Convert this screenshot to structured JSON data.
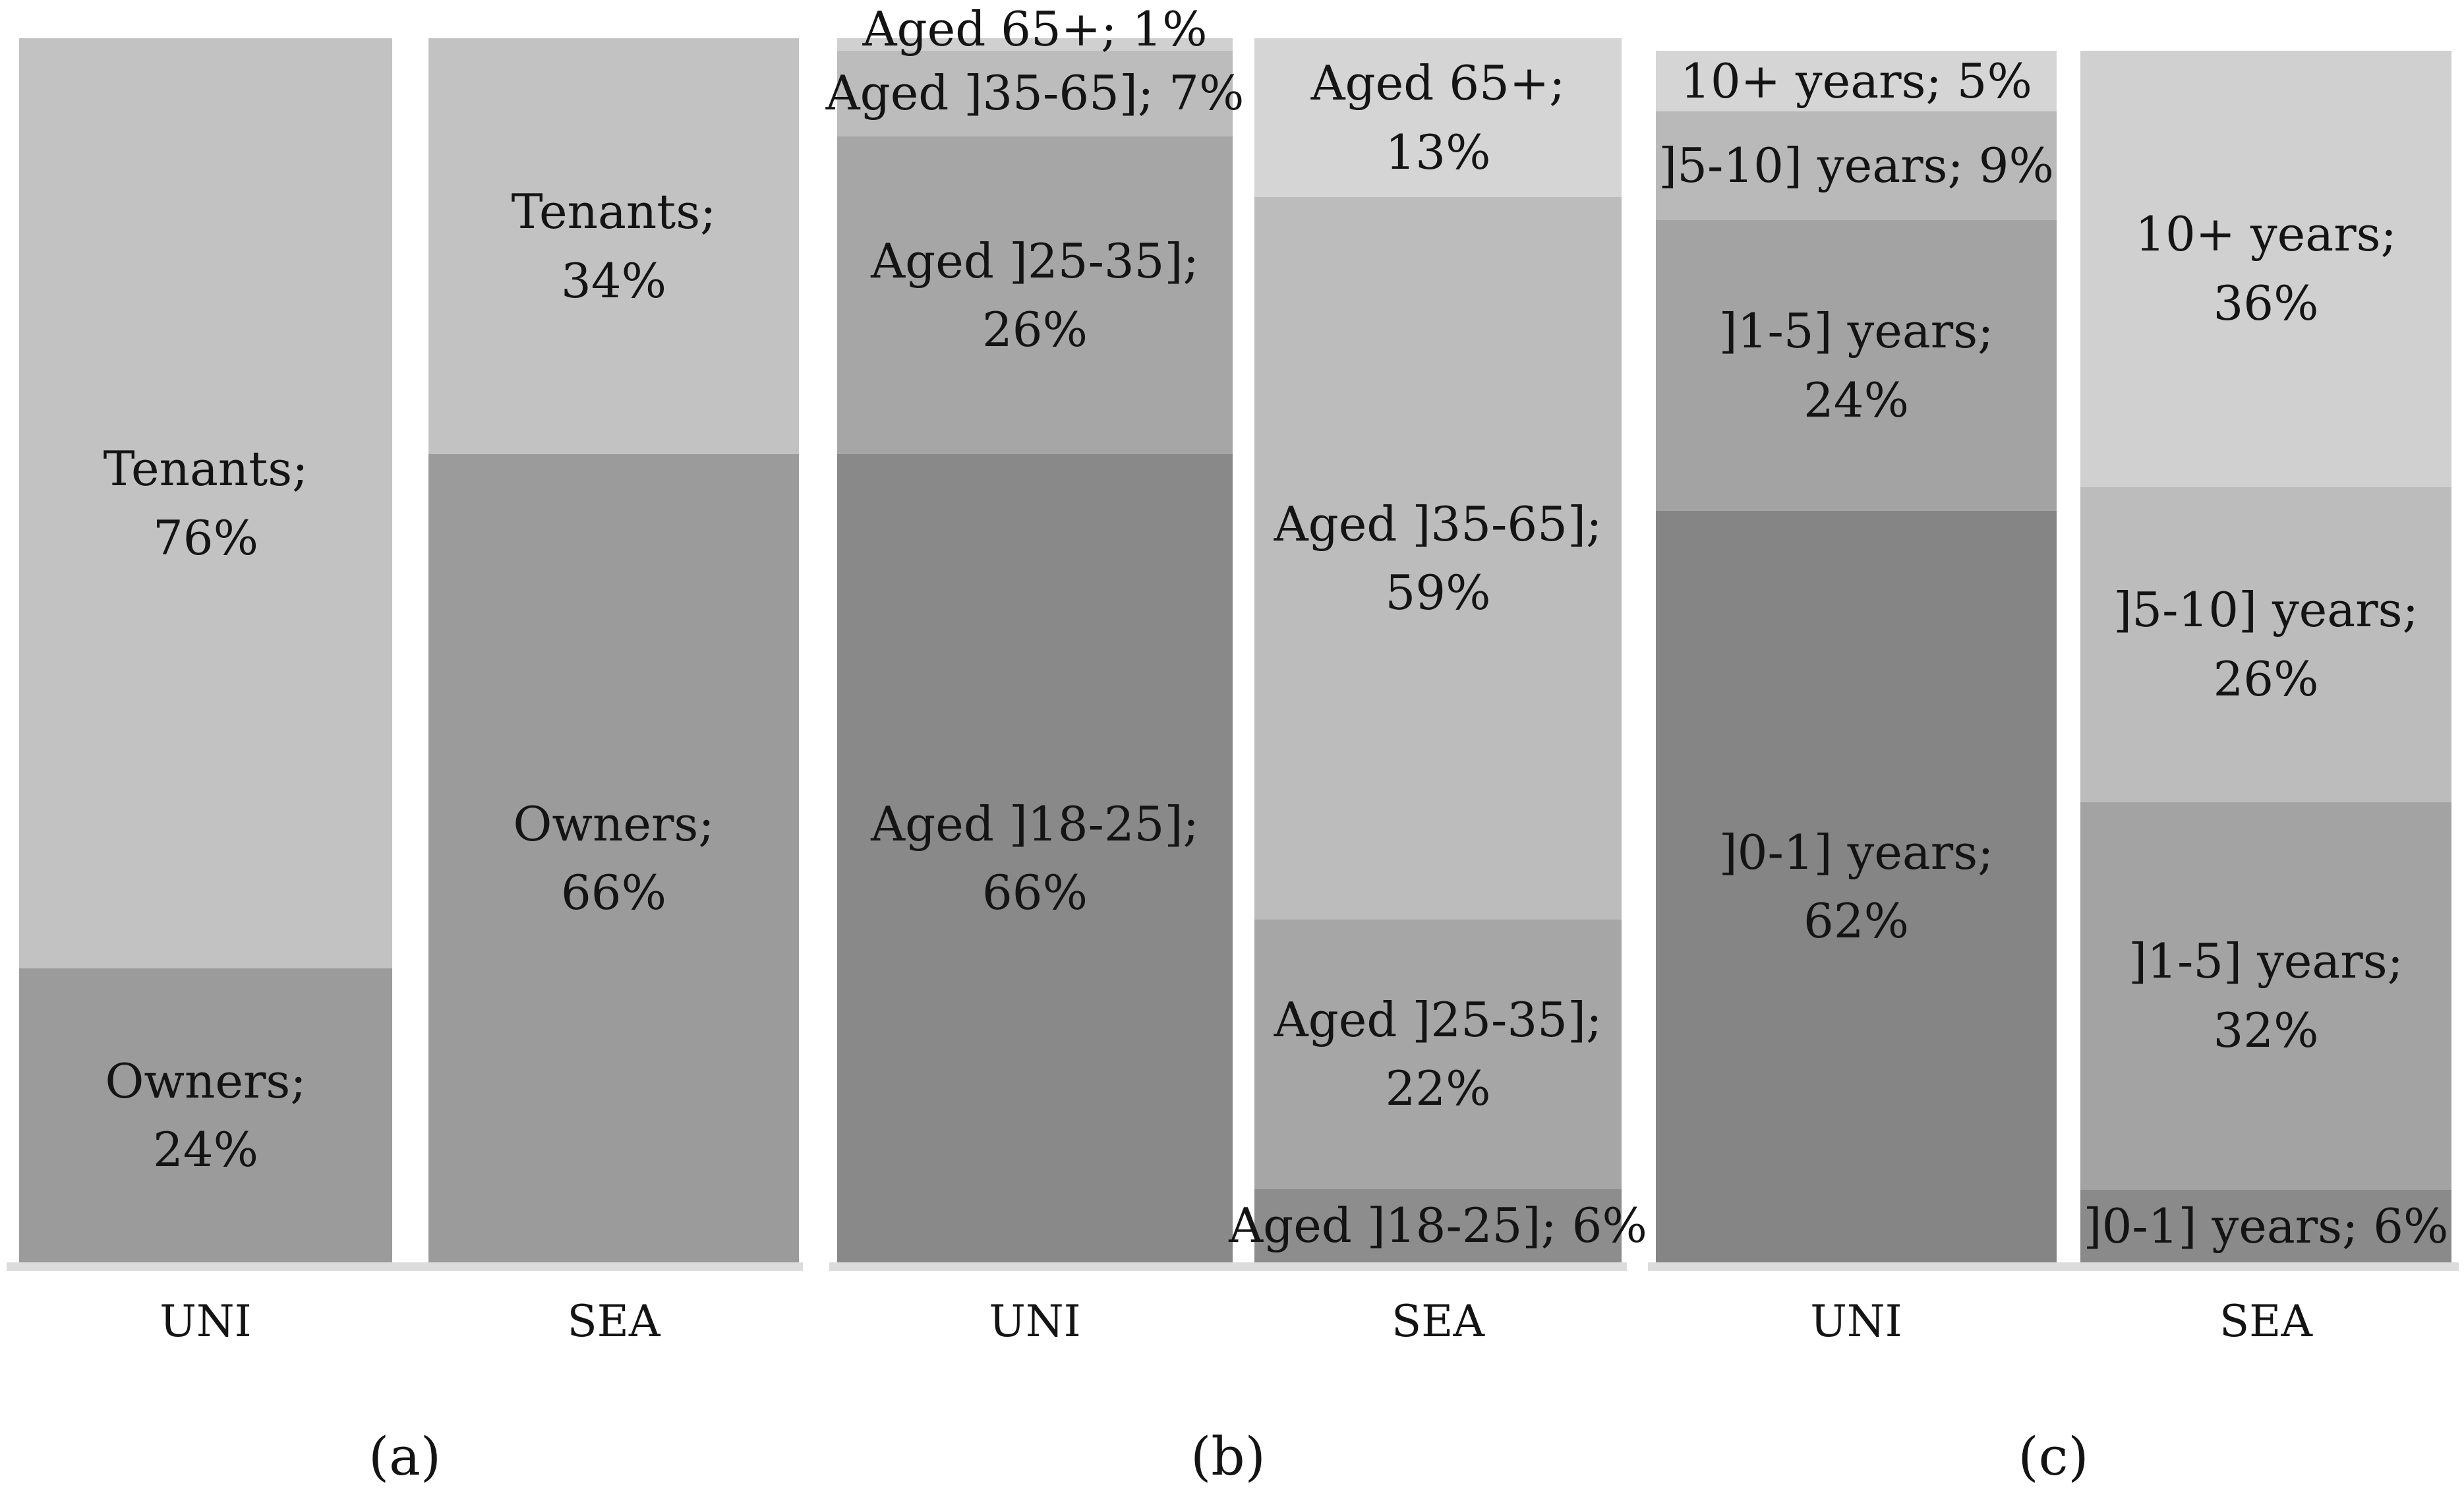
{
  "chart_data": {
    "type": "bar",
    "subtype": "stacked-100-percent-vertical",
    "value_unit": "%",
    "ylim": [
      0,
      100
    ],
    "grid": false,
    "legend": false,
    "segment_order": "top-to-bottom",
    "panels": [
      {
        "caption": "(a)",
        "categories": [
          "UNI",
          "SEA"
        ],
        "bars": [
          {
            "category": "UNI",
            "segments": [
              {
                "name": "Tenants",
                "value": 76,
                "label": "Tenants; 76%",
                "label_lines": [
                  "Tenants;",
                  "76%"
                ],
                "label_position": "inside",
                "color": "#c2c2c2"
              },
              {
                "name": "Owners",
                "value": 24,
                "label": "Owners; 24%",
                "label_lines": [
                  "Owners;",
                  "24%"
                ],
                "label_position": "inside",
                "color": "#9b9b9b"
              }
            ]
          },
          {
            "category": "SEA",
            "segments": [
              {
                "name": "Tenants",
                "value": 34,
                "label": "Tenants; 34%",
                "label_lines": [
                  "Tenants;",
                  "34%"
                ],
                "label_position": "inside",
                "color": "#c2c2c2"
              },
              {
                "name": "Owners",
                "value": 66,
                "label": "Owners; 66%",
                "label_lines": [
                  "Owners;",
                  "66%"
                ],
                "label_position": "inside",
                "color": "#9b9b9b"
              }
            ]
          }
        ]
      },
      {
        "caption": "(b)",
        "categories": [
          "UNI",
          "SEA"
        ],
        "bars": [
          {
            "category": "UNI",
            "segments": [
              {
                "name": "Aged 65+",
                "value": 1,
                "label": "Aged 65+; 1%",
                "label_lines": [
                  "Aged 65+; 1%"
                ],
                "label_position": "above",
                "color": "#d0d0d0"
              },
              {
                "name": "Aged ]35-65]",
                "value": 7,
                "label": "Aged ]35-65]; 7%",
                "label_lines": [
                  "Aged ]35-65]; 7%"
                ],
                "label_position": "inside",
                "color": "#bcbcbc"
              },
              {
                "name": "Aged ]25-35]",
                "value": 26,
                "label": "Aged ]25-35]; 26%",
                "label_lines": [
                  "Aged ]25-35];",
                  "26%"
                ],
                "label_position": "inside",
                "color": "#a6a6a6"
              },
              {
                "name": "Aged ]18-25]",
                "value": 66,
                "label": "Aged ]18-25]; 66%",
                "label_lines": [
                  "Aged ]18-25];",
                  "66%"
                ],
                "label_position": "inside",
                "color": "#898989"
              }
            ]
          },
          {
            "category": "SEA",
            "segments": [
              {
                "name": "Aged 65+",
                "value": 13,
                "label": "Aged 65+; 13%",
                "label_lines": [
                  "Aged 65+;",
                  "13%"
                ],
                "label_position": "inside",
                "color": "#d5d5d5"
              },
              {
                "name": "Aged ]35-65]",
                "value": 59,
                "label": "Aged ]35-65]; 59%",
                "label_lines": [
                  "Aged ]35-65];",
                  "59%"
                ],
                "label_position": "inside",
                "color": "#bcbcbc"
              },
              {
                "name": "Aged ]25-35]",
                "value": 22,
                "label": "Aged ]25-35]; 22%",
                "label_lines": [
                  "Aged ]25-35];",
                  "22%"
                ],
                "label_position": "inside",
                "color": "#a6a6a6"
              },
              {
                "name": "Aged ]18-25]",
                "value": 6,
                "label": "Aged ]18-25]; 6%",
                "label_lines": [
                  "Aged ]18-25]; 6%"
                ],
                "label_position": "inside",
                "color": "#8d8d8d"
              }
            ]
          }
        ]
      },
      {
        "caption": "(c)",
        "categories": [
          "UNI",
          "SEA"
        ],
        "bars": [
          {
            "category": "UNI",
            "segments": [
              {
                "name": "10+ years",
                "value": 5,
                "label": "10+ years; 5%",
                "label_lines": [
                  "10+ years; 5%"
                ],
                "label_position": "inside",
                "color": "#d5d5d5"
              },
              {
                "name": "]5-10] years",
                "value": 9,
                "label": "]5-10] years; 9%",
                "label_lines": [
                  "]5-10] years; 9%"
                ],
                "label_position": "inside",
                "color": "#b9b9b9"
              },
              {
                "name": "]1-5] years",
                "value": 24,
                "label": "]1-5] years; 24%",
                "label_lines": [
                  "]1-5] years;",
                  "24%"
                ],
                "label_position": "inside",
                "color": "#a3a3a3"
              },
              {
                "name": "]0-1] years",
                "value": 62,
                "label": "]0-1] years; 62%",
                "label_lines": [
                  "]0-1] years;",
                  "62%"
                ],
                "label_position": "inside",
                "color": "#858585"
              }
            ]
          },
          {
            "category": "SEA",
            "segments": [
              {
                "name": "10+ years",
                "value": 36,
                "label": "10+ years; 36%",
                "label_lines": [
                  "10+ years;",
                  "36%"
                ],
                "label_position": "inside",
                "color": "#d0d0d0"
              },
              {
                "name": "]5-10] years",
                "value": 26,
                "label": "]5-10] years; 26%",
                "label_lines": [
                  "]5-10] years;",
                  "26%"
                ],
                "label_position": "inside",
                "color": "#bcbcbc"
              },
              {
                "name": "]1-5] years",
                "value": 32,
                "label": "]1-5] years; 32%",
                "label_lines": [
                  "]1-5] years;",
                  "32%"
                ],
                "label_position": "inside",
                "color": "#a3a3a3"
              },
              {
                "name": "]0-1] years",
                "value": 6,
                "label": "]0-1] years; 6%",
                "label_lines": [
                  "]0-1] years; 6%"
                ],
                "label_position": "inside",
                "color": "#8a8a8a"
              }
            ]
          }
        ]
      }
    ]
  }
}
